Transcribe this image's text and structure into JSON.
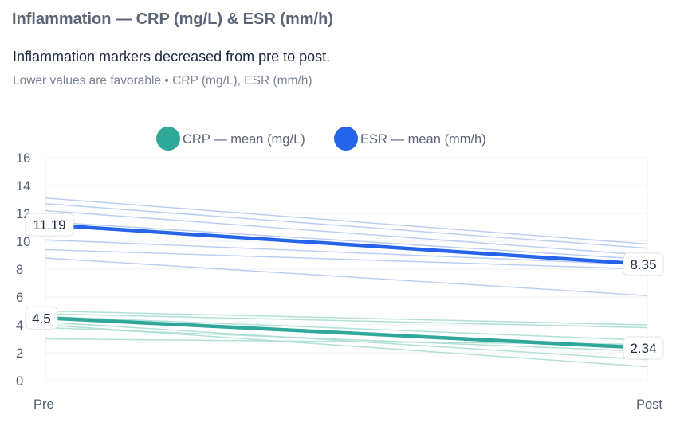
{
  "card": {
    "title": "Inflammation — CRP (mg/L) & ESR (mm/h)",
    "headline": "Inflammation markers decreased from pre to post.",
    "subtitle": "Lower values are favorable • CRP (mg/L), ESR (mm/h)"
  },
  "chart_data": {
    "type": "line",
    "categories": [
      "Pre",
      "Post"
    ],
    "ylim": [
      0,
      16
    ],
    "yticks": [
      0,
      2,
      4,
      6,
      8,
      10,
      12,
      14,
      16
    ],
    "grid": true,
    "legend_position": "top-center",
    "series": [
      {
        "name": "CRP — mean (mg/L)",
        "color": "#2fa89a",
        "values": [
          4.5,
          2.34
        ],
        "value_labels": [
          "4.5",
          "2.34"
        ]
      },
      {
        "name": "ESR — mean (mm/h)",
        "color": "#2563eb",
        "values": [
          11.19,
          8.35
        ],
        "value_labels": [
          "11.19",
          "8.35"
        ]
      }
    ],
    "individual_lines": [
      {
        "group": "CRP",
        "color": "#a8ddd2",
        "values": [
          5.0,
          4.0
        ]
      },
      {
        "group": "CRP",
        "color": "#a8ddd2",
        "values": [
          4.8,
          3.8
        ]
      },
      {
        "group": "CRP",
        "color": "#a8ddd2",
        "values": [
          4.6,
          2.9
        ]
      },
      {
        "group": "CRP",
        "color": "#a8ddd2",
        "values": [
          4.2,
          1.5
        ]
      },
      {
        "group": "CRP",
        "color": "#a8ddd2",
        "values": [
          4.0,
          1.0
        ]
      },
      {
        "group": "CRP",
        "color": "#a8ddd2",
        "values": [
          3.8,
          2.1
        ]
      },
      {
        "group": "CRP",
        "color": "#a8ddd2",
        "values": [
          3.0,
          2.6
        ]
      },
      {
        "group": "ESR",
        "color": "#b3c9f2",
        "values": [
          13.1,
          9.8
        ]
      },
      {
        "group": "ESR",
        "color": "#b3c9f2",
        "values": [
          12.7,
          9.5
        ]
      },
      {
        "group": "ESR",
        "color": "#b3c9f2",
        "values": [
          12.2,
          9.0
        ]
      },
      {
        "group": "ESR",
        "color": "#b3c9f2",
        "values": [
          11.4,
          8.7
        ]
      },
      {
        "group": "ESR",
        "color": "#b3c9f2",
        "values": [
          10.1,
          8.3
        ]
      },
      {
        "group": "ESR",
        "color": "#b3c9f2",
        "values": [
          9.4,
          8.0
        ]
      },
      {
        "group": "ESR",
        "color": "#b3c9f2",
        "values": [
          8.8,
          6.1
        ]
      }
    ]
  }
}
